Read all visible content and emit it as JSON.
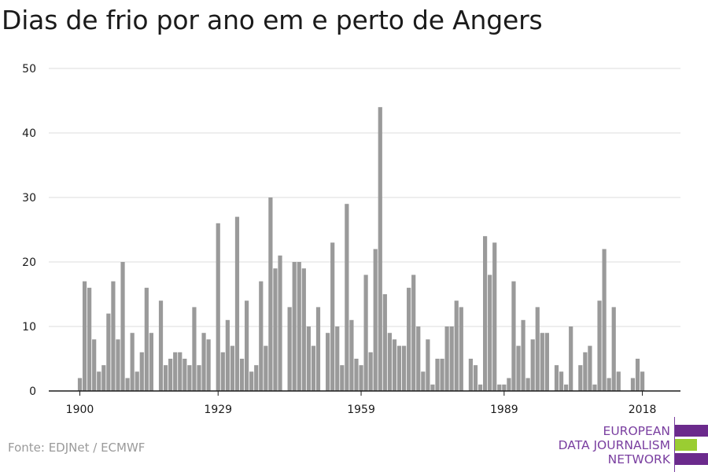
{
  "title": "Dias de frio por ano em e perto de Angers",
  "source": "Fonte: EDJNet / ECMWF",
  "logo": {
    "line1": "EUROPEAN",
    "line2": "DATA JOURNALISM",
    "line3": "NETWORK",
    "colors": {
      "purple": "#6b2a8c",
      "green": "#9acd32"
    }
  },
  "colors": {
    "bar": "#9a9a9a",
    "grid": "#dddddd",
    "axis": "#1b1b1b"
  },
  "chart_data": {
    "type": "bar",
    "title": "Dias de frio por ano em e perto de Angers",
    "xlabel": "",
    "ylabel": "",
    "ylim": [
      0,
      50
    ],
    "yticks": [
      0,
      10,
      20,
      30,
      40,
      50
    ],
    "xticks": [
      1900,
      1929,
      1959,
      1989,
      2018
    ],
    "grid": true,
    "categories": [
      1900,
      1901,
      1902,
      1903,
      1904,
      1905,
      1906,
      1907,
      1908,
      1909,
      1910,
      1911,
      1912,
      1913,
      1914,
      1915,
      1916,
      1917,
      1918,
      1919,
      1920,
      1921,
      1922,
      1923,
      1924,
      1925,
      1926,
      1927,
      1928,
      1929,
      1930,
      1931,
      1932,
      1933,
      1934,
      1935,
      1936,
      1937,
      1938,
      1939,
      1940,
      1941,
      1942,
      1943,
      1944,
      1945,
      1946,
      1947,
      1948,
      1949,
      1950,
      1951,
      1952,
      1953,
      1954,
      1955,
      1956,
      1957,
      1958,
      1959,
      1960,
      1961,
      1962,
      1963,
      1964,
      1965,
      1966,
      1967,
      1968,
      1969,
      1970,
      1971,
      1972,
      1973,
      1974,
      1975,
      1976,
      1977,
      1978,
      1979,
      1980,
      1981,
      1982,
      1983,
      1984,
      1985,
      1986,
      1987,
      1988,
      1989,
      1990,
      1991,
      1992,
      1993,
      1994,
      1995,
      1996,
      1997,
      1998,
      1999,
      2000,
      2001,
      2002,
      2003,
      2004,
      2005,
      2006,
      2007,
      2008,
      2009,
      2010,
      2011,
      2012,
      2013,
      2014,
      2015,
      2016,
      2017,
      2018,
      2019
    ],
    "values": [
      2,
      17,
      16,
      8,
      3,
      4,
      12,
      17,
      8,
      20,
      2,
      9,
      3,
      6,
      16,
      9,
      0,
      14,
      4,
      5,
      6,
      6,
      5,
      4,
      13,
      4,
      9,
      8,
      0,
      26,
      6,
      11,
      7,
      27,
      5,
      14,
      3,
      4,
      17,
      7,
      30,
      19,
      21,
      0,
      13,
      20,
      20,
      19,
      10,
      7,
      13,
      0,
      9,
      23,
      10,
      4,
      29,
      11,
      5,
      4,
      18,
      6,
      22,
      44,
      15,
      9,
      8,
      7,
      7,
      16,
      18,
      10,
      3,
      8,
      1,
      5,
      5,
      10,
      10,
      14,
      13,
      0,
      5,
      4,
      1,
      24,
      18,
      23,
      1,
      1,
      2,
      17,
      7,
      11,
      2,
      8,
      13,
      9,
      9,
      0,
      4,
      3,
      1,
      10,
      0,
      4,
      6,
      7,
      1,
      14,
      22,
      2,
      13,
      3,
      0,
      0,
      2,
      5,
      3,
      0
    ]
  }
}
